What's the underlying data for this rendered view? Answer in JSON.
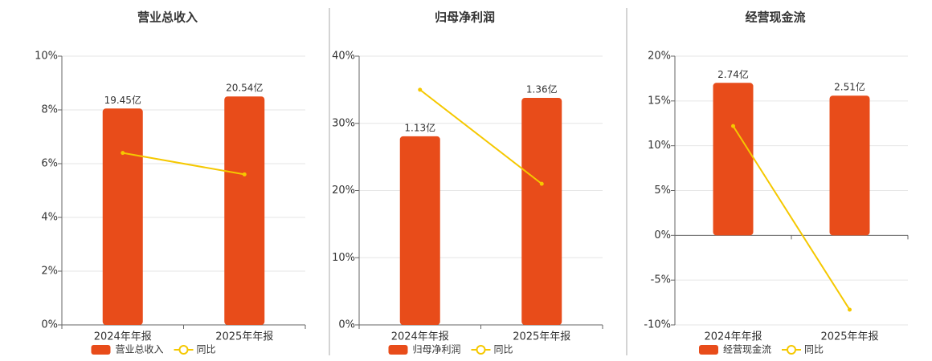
{
  "chart_data": [
    {
      "type": "bar",
      "title": "营业总收入",
      "categories": [
        "2024年年报",
        "2025年年报"
      ],
      "series": [
        {
          "name": "营业总收入",
          "type": "bar",
          "axis": "y2",
          "color": "#e84c1a",
          "values": [
            19.45,
            20.54
          ],
          "value_labels": [
            "19.45亿",
            "20.54亿"
          ]
        },
        {
          "name": "同比",
          "type": "line",
          "color": "#f5c800",
          "values": [
            6.4,
            5.6
          ]
        }
      ],
      "ylim": [
        0,
        10
      ],
      "yticks": [
        {
          "value": 0,
          "label": "0%"
        },
        {
          "value": 2,
          "label": "2%"
        },
        {
          "value": 4,
          "label": "4%"
        },
        {
          "value": 6,
          "label": "6%"
        },
        {
          "value": 8,
          "label": "8%"
        },
        {
          "value": 10,
          "label": "10%"
        }
      ],
      "y2lim": [
        0,
        24.16
      ],
      "grid": true
    },
    {
      "type": "bar",
      "title": "归母净利润",
      "categories": [
        "2024年年报",
        "2025年年报"
      ],
      "series": [
        {
          "name": "归母净利润",
          "type": "bar",
          "axis": "y2",
          "color": "#e84c1a",
          "values": [
            1.13,
            1.36
          ],
          "value_labels": [
            "1.13亿",
            "1.36亿"
          ]
        },
        {
          "name": "同比",
          "type": "line",
          "color": "#f5c800",
          "values": [
            35,
            21
          ]
        }
      ],
      "ylim": [
        0,
        40
      ],
      "yticks": [
        {
          "value": 0,
          "label": "0%"
        },
        {
          "value": 10,
          "label": "10%"
        },
        {
          "value": 20,
          "label": "20%"
        },
        {
          "value": 30,
          "label": "30%"
        },
        {
          "value": 40,
          "label": "40%"
        }
      ],
      "y2lim": [
        0,
        1.61
      ],
      "grid": true
    },
    {
      "type": "bar",
      "title": "经营现金流",
      "categories": [
        "2024年年报",
        "2025年年报"
      ],
      "series": [
        {
          "name": "经营现金流",
          "type": "bar",
          "axis": "y2",
          "color": "#e84c1a",
          "values": [
            2.74,
            2.51
          ],
          "value_labels": [
            "2.74亿",
            "2.51亿"
          ]
        },
        {
          "name": "同比",
          "type": "line",
          "color": "#f5c800",
          "values": [
            12.2,
            -8.3
          ]
        }
      ],
      "ylim": [
        -10,
        20
      ],
      "yticks": [
        {
          "value": -10,
          "label": "-10%"
        },
        {
          "value": -5,
          "label": "-5%"
        },
        {
          "value": 0,
          "label": "0%"
        },
        {
          "value": 5,
          "label": "5%"
        },
        {
          "value": 10,
          "label": "10%"
        },
        {
          "value": 15,
          "label": "15%"
        },
        {
          "value": 20,
          "label": "20%"
        }
      ],
      "y2lim": [
        -1.61,
        3.22
      ],
      "grid": true
    }
  ]
}
